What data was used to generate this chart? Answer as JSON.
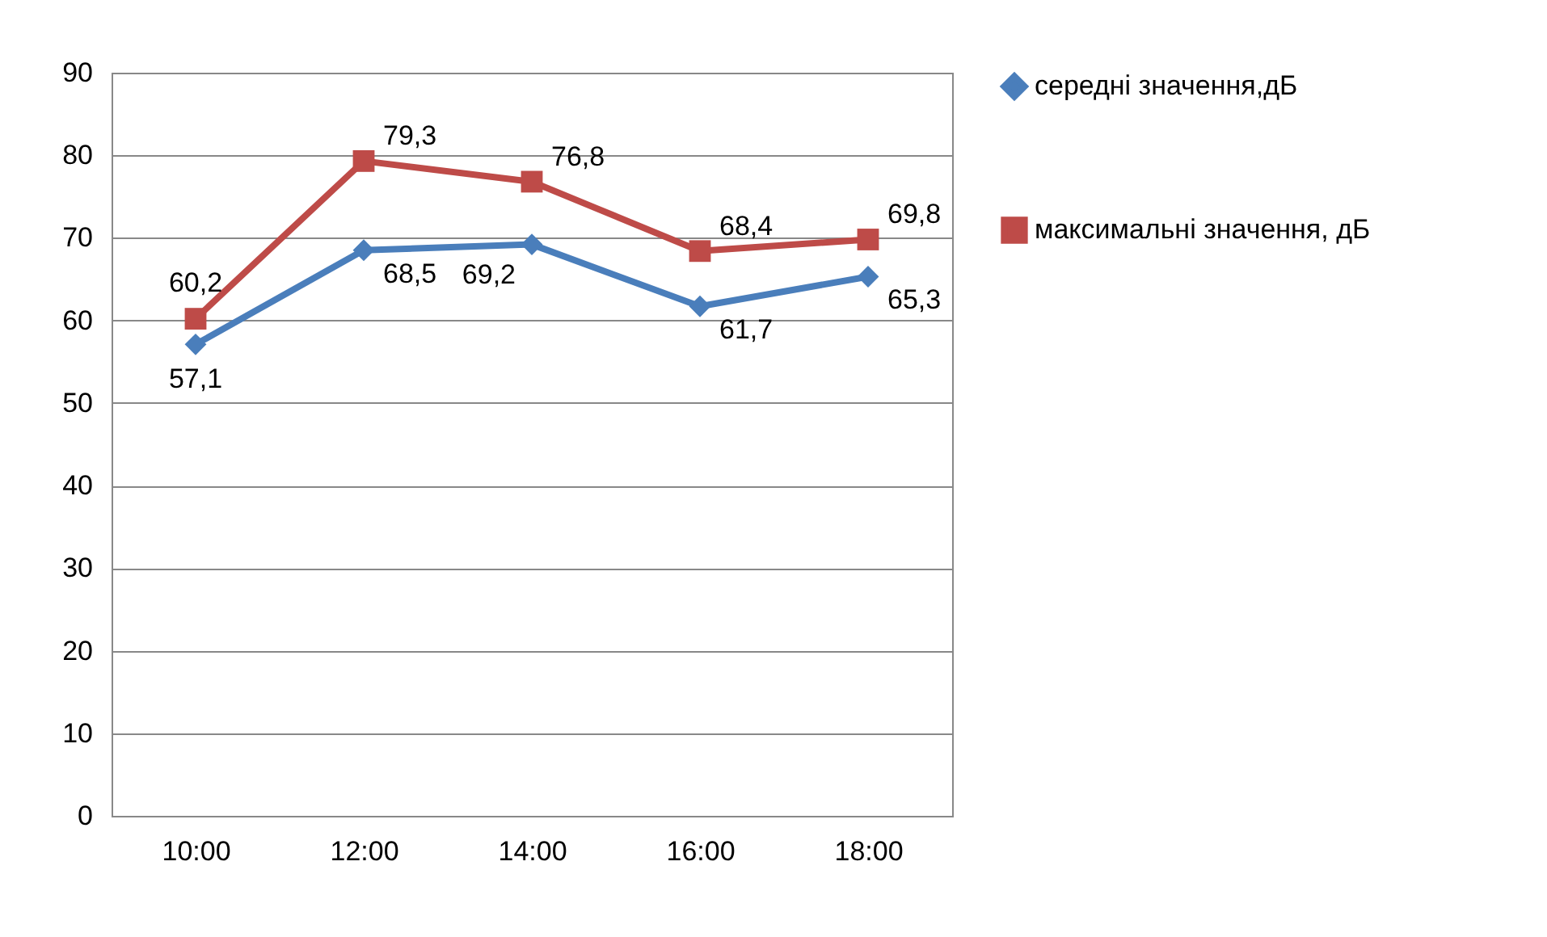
{
  "chart_data": {
    "type": "line",
    "categories": [
      "10:00",
      "12:00",
      "14:00",
      "16:00",
      "18:00"
    ],
    "series": [
      {
        "name": "середні значення,дБ",
        "color": "#4a7ebb",
        "marker": "diamond",
        "values": [
          57.1,
          68.5,
          69.2,
          61.7,
          65.3
        ],
        "value_labels": [
          "57,1",
          "68,5",
          "69,2",
          "61,7",
          "65,3"
        ]
      },
      {
        "name": "максимальні значення, дБ",
        "color": "#be4b48",
        "marker": "square",
        "values": [
          60.2,
          79.3,
          76.8,
          68.4,
          69.8
        ],
        "value_labels": [
          "60,2",
          "79,3",
          "76,8",
          "68,4",
          "69,8"
        ]
      }
    ],
    "ylim": [
      0,
      90
    ],
    "yticks": [
      0,
      10,
      20,
      30,
      40,
      50,
      60,
      70,
      80,
      90
    ],
    "grid": "y",
    "legend": "right",
    "line_style": "solid"
  }
}
